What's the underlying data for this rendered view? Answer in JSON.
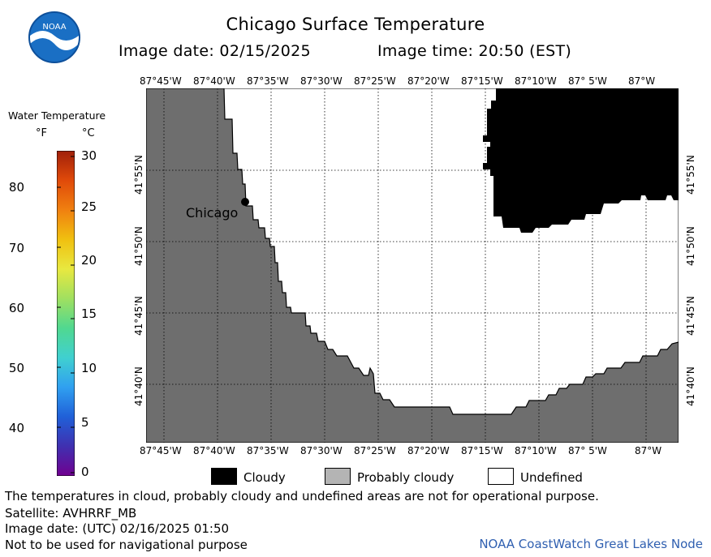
{
  "title": "Chicago Surface Temperature",
  "image_date_label": "Image date: 02/15/2025",
  "image_time_label": "Image time: 20:50 (EST)",
  "logo": {
    "text": "NOAA",
    "color": "#1a6fc4"
  },
  "legend": {
    "title": "Water Temperature",
    "unit_f": "°F",
    "unit_c": "°C",
    "f_ticks": [
      "80",
      "70",
      "60",
      "50",
      "40"
    ],
    "c_ticks": [
      "30",
      "25",
      "20",
      "15",
      "10",
      "5",
      "0"
    ],
    "scale_colors": [
      "#a0200a",
      "#e04a0a",
      "#f08010",
      "#f0c010",
      "#e8e840",
      "#a0e060",
      "#50d890",
      "#40d0d0",
      "#30a0f0",
      "#2060d8",
      "#4030b0",
      "#700090"
    ]
  },
  "map": {
    "lon_ticks": [
      "87°45'W",
      "87°40'W",
      "87°35'W",
      "87°30'W",
      "87°25'W",
      "87°20'W",
      "87°15'W",
      "87°10'W",
      "87° 5'W",
      "87°W"
    ],
    "lat_ticks": [
      "41°55'N",
      "41°50'N",
      "41°45'N",
      "41°40'N"
    ],
    "city_label": "Chicago",
    "land_color": "#6e6e6e",
    "cloud_color": "#000000"
  },
  "key": {
    "cloudy": "Cloudy",
    "probably_cloudy": "Probably cloudy",
    "undefined": "Undefined"
  },
  "footer": {
    "disclaimer": "The temperatures in cloud, probably cloudy and undefined areas are not for operational purpose.",
    "satellite": "Satellite: AVHRRF_MB",
    "utc_date": "Image date: (UTC) 02/16/2025  01:50",
    "nav_warning": "Not to be used for navigational purpose",
    "node": "NOAA CoastWatch Great Lakes Node"
  }
}
